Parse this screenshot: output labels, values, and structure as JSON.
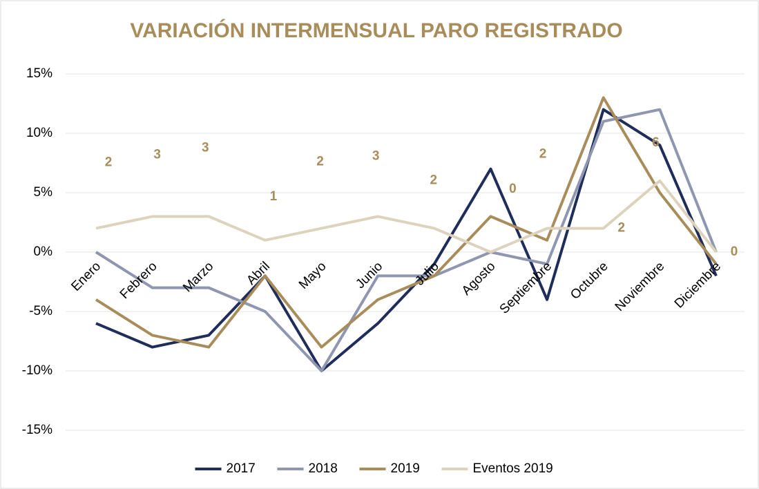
{
  "chart_data": {
    "type": "line",
    "title": "VARIACIÓN INTERMENSUAL PARO REGISTRADO",
    "categories": [
      "Enero",
      "Febrero",
      "Marzo",
      "Abril",
      "Mayo",
      "Junio",
      "Julio",
      "Agosto",
      "Septiembre",
      "Octubre",
      "Noviembre",
      "Diciembre"
    ],
    "series": [
      {
        "name": "2017",
        "color": "#1f2d5a",
        "values": [
          -6,
          -8,
          -7,
          -2,
          -10,
          -6,
          -1,
          7,
          -4,
          12,
          9,
          -2
        ]
      },
      {
        "name": "2018",
        "color": "#8e96b0",
        "values": [
          0,
          -3,
          -3,
          -5,
          -10,
          -2,
          -2,
          0,
          -1,
          11,
          12,
          0
        ]
      },
      {
        "name": "2019",
        "color": "#a88c5a",
        "values": [
          -4,
          -7,
          -8,
          -2,
          -8,
          -4,
          -2,
          3,
          1,
          13,
          5,
          -1
        ]
      },
      {
        "name": "Eventos 2019",
        "color": "#ddd3bd",
        "values": [
          2,
          3,
          3,
          1,
          2,
          3,
          2,
          0,
          2,
          2,
          6,
          0
        ],
        "show_value_labels": true
      }
    ],
    "ylim": [
      -15,
      15
    ],
    "yticks": [
      {
        "value": -15,
        "label": "-15%"
      },
      {
        "value": -10,
        "label": "-10%"
      },
      {
        "value": -5,
        "label": "-5%"
      },
      {
        "value": 0,
        "label": "0%"
      },
      {
        "value": 5,
        "label": "5%"
      },
      {
        "value": 10,
        "label": "10%"
      },
      {
        "value": 15,
        "label": "15%"
      }
    ],
    "grid": true,
    "legend": "bottom"
  }
}
